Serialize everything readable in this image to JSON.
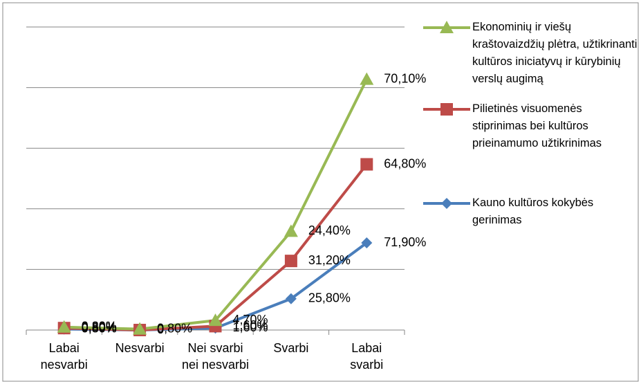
{
  "chart_data": {
    "type": "stacked_line",
    "categories": [
      "Labai nesvarbi",
      "Nesvarbi",
      "Nei svarbi nei nesvarbi",
      "Svarbi",
      "Labai svarbi"
    ],
    "series": [
      {
        "name": "Kauno kultūros kokybės gerinimas",
        "color": "#4a7ebb",
        "marker": "diamond",
        "values": [
          0.8,
          0,
          1.6,
          25.8,
          71.9
        ],
        "value_labels": [
          "0,80%",
          "0",
          "1,60%",
          "25,80%",
          "71,90%"
        ]
      },
      {
        "name": "Pilietinės visuomenės stiprinimas bei kultūros prieinamumo užtikrinimas",
        "color": "#be4b48",
        "marker": "square",
        "values": [
          0.8,
          0,
          1.6,
          31.2,
          64.8
        ],
        "value_labels": [
          "0,80%",
          "0",
          "1,60%",
          "31,20%",
          "64,80%"
        ]
      },
      {
        "name": "Ekonominių ir viešų kraštovaizdžių plėtra, užtikrinanti kultūros iniciatyvų ir kūrybinių verslų augimą",
        "color": "#98b954",
        "marker": "triangle",
        "values": [
          0.8,
          0.8,
          4.7,
          24.4,
          70.1
        ],
        "value_labels": [
          "0,80%",
          "0,80%",
          "4,70%",
          "24,40%",
          "70,10%"
        ]
      }
    ],
    "ylim": [
      0,
      250
    ],
    "yticks": [
      0,
      50,
      100,
      150,
      200,
      250
    ],
    "grid": true,
    "legend": "right"
  }
}
